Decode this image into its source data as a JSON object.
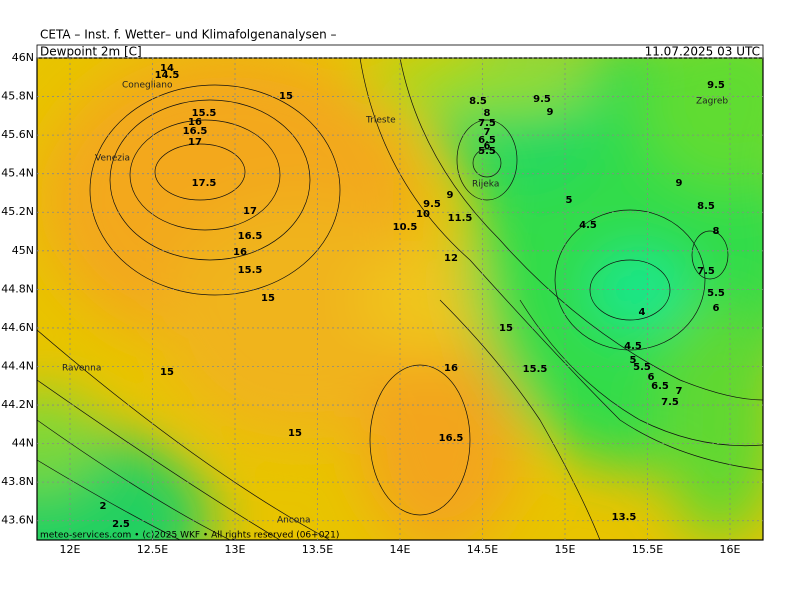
{
  "header": {
    "institute": "CETA – Inst. f. Wetter– und Klimafolgenanalysen –",
    "field": "Dewpoint 2m [C]",
    "valid_time": "11.07.2025 03 UTC"
  },
  "footer": "meteo-services.com • (c)2025 WKF • All rights reserved (06+021)",
  "map": {
    "lat_range": [
      43.5,
      46
    ],
    "lon_range": [
      11.8,
      16.2
    ],
    "lat_ticks": [
      {
        "value": 46,
        "label": "46N"
      },
      {
        "value": 45.8,
        "label": "45.8N"
      },
      {
        "value": 45.6,
        "label": "45.6N"
      },
      {
        "value": 45.4,
        "label": "45.4N"
      },
      {
        "value": 45.2,
        "label": "45.2N"
      },
      {
        "value": 45,
        "label": "45N"
      },
      {
        "value": 44.8,
        "label": "44.8N"
      },
      {
        "value": 44.6,
        "label": "44.6N"
      },
      {
        "value": 44.4,
        "label": "44.4N"
      },
      {
        "value": 44.2,
        "label": "44.2N"
      },
      {
        "value": 44,
        "label": "44N"
      },
      {
        "value": 43.8,
        "label": "43.8N"
      },
      {
        "value": 43.6,
        "label": "43.6N"
      }
    ],
    "lon_ticks": [
      {
        "value": 12,
        "label": "12E"
      },
      {
        "value": 12.5,
        "label": "12.5E"
      },
      {
        "value": 13,
        "label": "13E"
      },
      {
        "value": 13.5,
        "label": "13.5E"
      },
      {
        "value": 14,
        "label": "14E"
      },
      {
        "value": 14.5,
        "label": "14.5E"
      },
      {
        "value": 15,
        "label": "15E"
      },
      {
        "value": 15.5,
        "label": "15.5E"
      },
      {
        "value": 16,
        "label": "16E"
      }
    ],
    "cities": [
      "Conegliano",
      "Venezia",
      "Trieste",
      "Rijeka",
      "Ravenna",
      "Zagreb",
      "Ancona"
    ],
    "contour_labels": [
      14,
      14.5,
      15,
      15.5,
      16,
      16.5,
      17,
      17.5,
      17,
      16.5,
      16,
      15.5,
      15,
      15,
      15,
      8.5,
      9.5,
      9,
      8,
      7.5,
      7,
      6.5,
      6,
      5.5,
      9,
      9.5,
      10,
      11.5,
      10.5,
      12,
      15,
      16,
      15.5,
      16.5,
      13.5,
      9.5,
      9,
      8.5,
      8,
      7.5,
      5.5,
      6,
      5,
      4.5,
      4,
      4.5,
      5,
      5.5,
      6,
      6.5,
      7,
      7.5,
      2,
      2.5
    ]
  }
}
